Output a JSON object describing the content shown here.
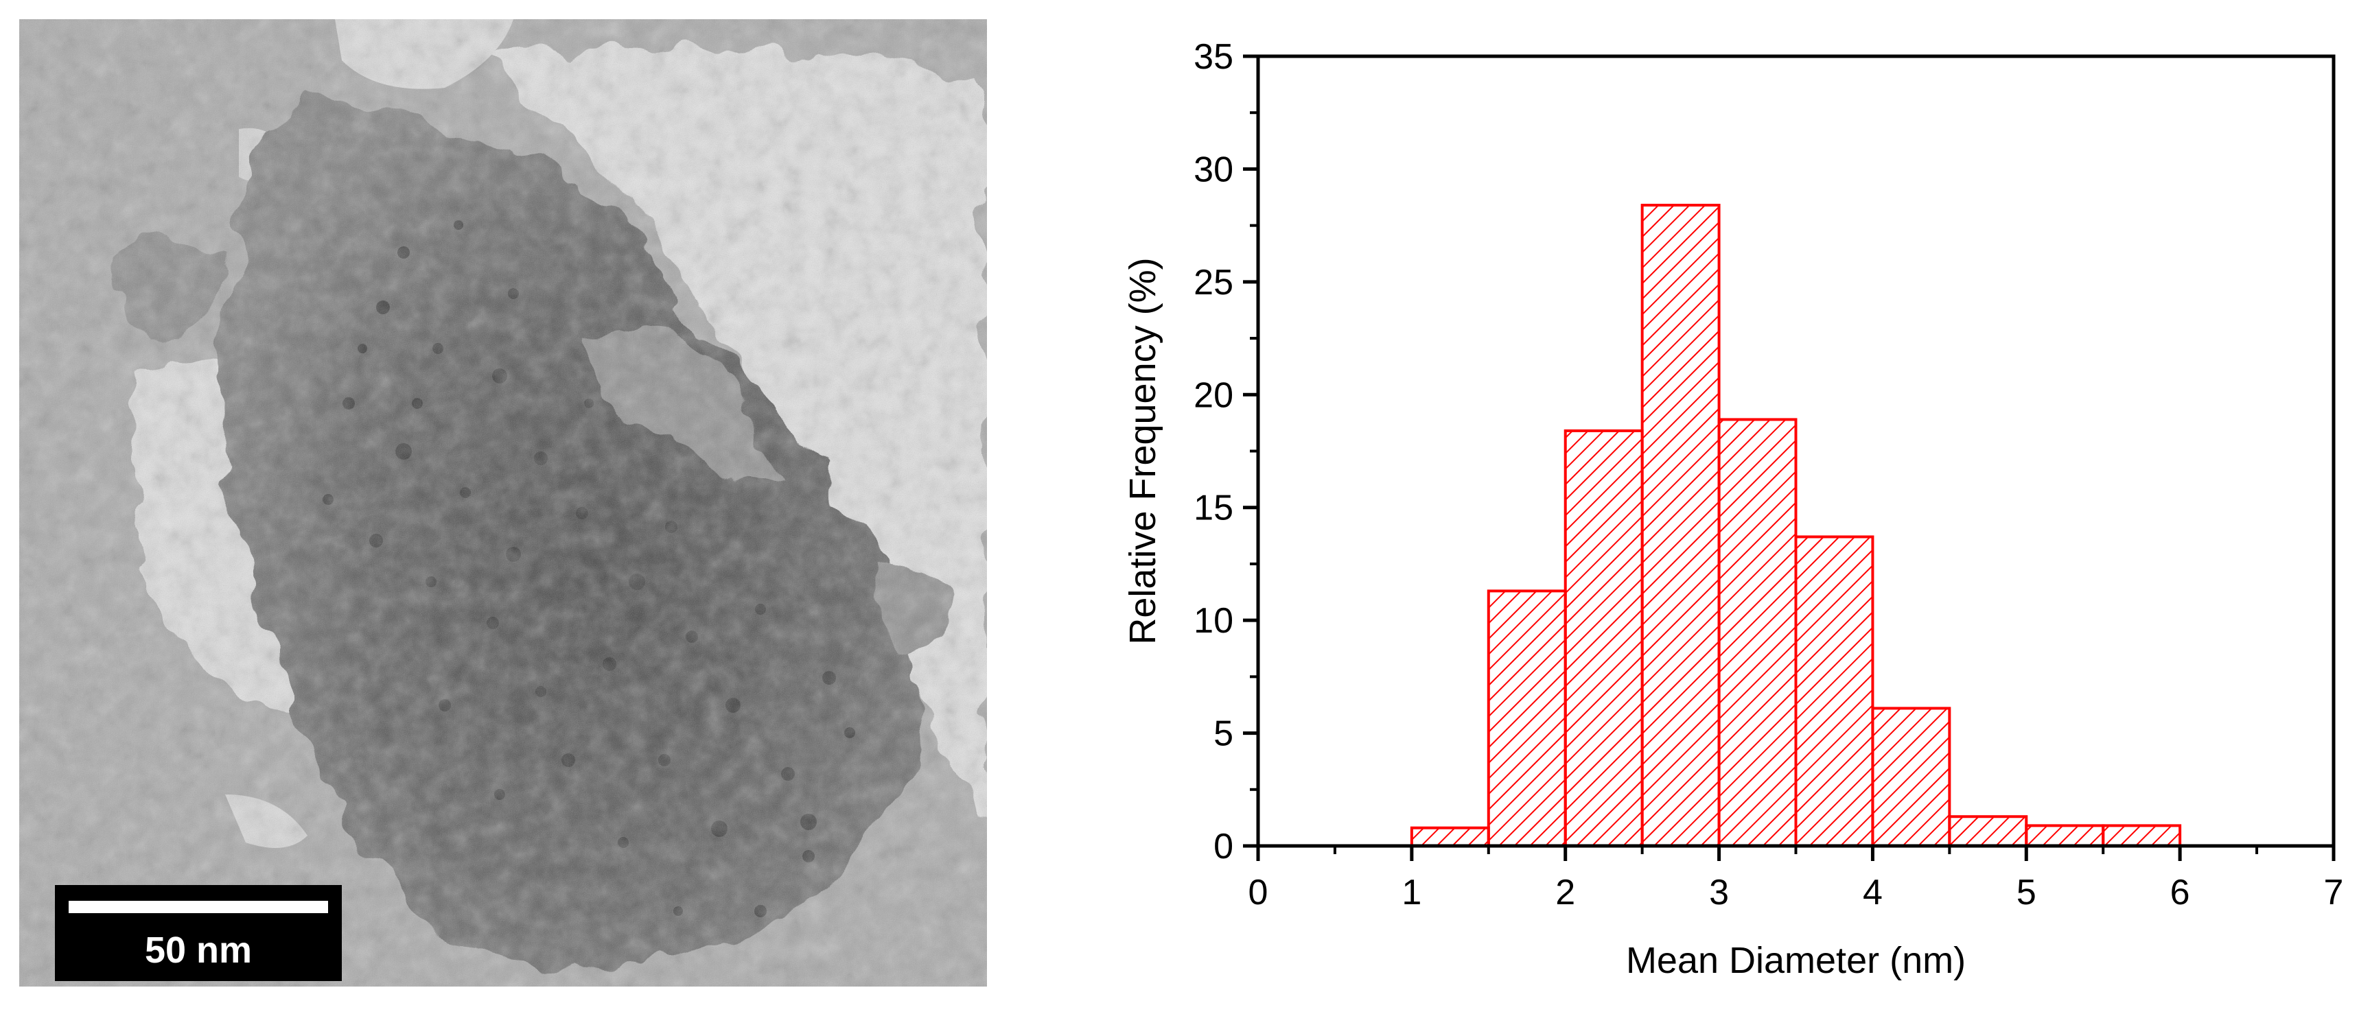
{
  "micrograph": {
    "scale_bar_label": "50 nm"
  },
  "chart_data": {
    "type": "bar",
    "title": "",
    "xlabel": "Mean Diameter (nm)",
    "ylabel": "Relative Frequency (%)",
    "xlim": [
      0,
      7
    ],
    "ylim": [
      0,
      35
    ],
    "x_ticks": [
      0,
      1,
      2,
      3,
      4,
      5,
      6,
      7
    ],
    "y_ticks": [
      0,
      5,
      10,
      15,
      20,
      25,
      30,
      35
    ],
    "bin_width": 0.5,
    "bins": [
      {
        "start": 1.0,
        "end": 1.5,
        "value": 0.8
      },
      {
        "start": 1.5,
        "end": 2.0,
        "value": 11.3
      },
      {
        "start": 2.0,
        "end": 2.5,
        "value": 18.4
      },
      {
        "start": 2.5,
        "end": 3.0,
        "value": 28.4
      },
      {
        "start": 3.0,
        "end": 3.5,
        "value": 18.9
      },
      {
        "start": 3.5,
        "end": 4.0,
        "value": 13.7
      },
      {
        "start": 4.0,
        "end": 4.5,
        "value": 6.1
      },
      {
        "start": 4.5,
        "end": 5.0,
        "value": 1.3
      },
      {
        "start": 5.0,
        "end": 5.5,
        "value": 0.9
      },
      {
        "start": 5.5,
        "end": 6.0,
        "value": 0.9
      }
    ],
    "bar_color": "#ff0000",
    "bar_fill": "diagonal-hatch",
    "grid": false,
    "legend": "none"
  }
}
